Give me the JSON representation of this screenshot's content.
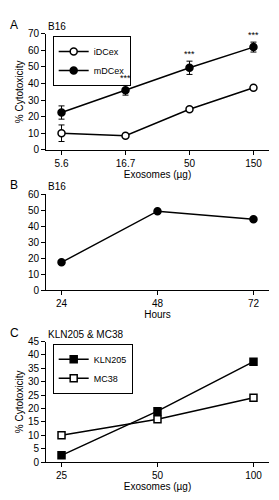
{
  "chart_data": [
    {
      "type": "line",
      "title": "B16",
      "x_label": "Exosomes (µg)",
      "y_label": "% Cytotoxicity",
      "categories": [
        "5.6",
        "16.7",
        "50",
        "150"
      ],
      "series": [
        {
          "name": "iDCex",
          "color": "#000000",
          "marker": "circle-open",
          "values": [
            10,
            8.5,
            24.5,
            37.5
          ],
          "errors": [
            5,
            1,
            1,
            1
          ]
        },
        {
          "name": "mDCex",
          "color": "#000000",
          "marker": "circle",
          "values": [
            22.5,
            36,
            49.5,
            62
          ],
          "errors": [
            4,
            3,
            4,
            3
          ]
        }
      ],
      "ylim": [
        0,
        70
      ],
      "yticks": [
        0,
        10,
        20,
        30,
        40,
        50,
        60,
        70
      ],
      "grid": false,
      "legend": "upper left",
      "annotations": [
        {
          "text": "A"
        },
        {
          "text": "***",
          "x": "16.7",
          "series": "mDCex"
        },
        {
          "text": "***",
          "x": "50",
          "series": "mDCex"
        },
        {
          "text": "***",
          "x": "150",
          "series": "mDCex"
        }
      ]
    },
    {
      "type": "line",
      "title": "B16",
      "x_label": "Hours",
      "categories": [
        "24",
        "48",
        "72"
      ],
      "series": [
        {
          "color": "#000000",
          "marker": "circle",
          "values": [
            17.5,
            49.5,
            44.5
          ]
        }
      ],
      "ylim": [
        0,
        60
      ],
      "yticks": [
        0,
        10,
        20,
        30,
        40,
        50,
        60
      ],
      "grid": false,
      "annotations": [
        {
          "text": "B"
        }
      ]
    },
    {
      "type": "line",
      "title": "KLN205 & MC38",
      "x_label": "Exosomes (µg)",
      "y_label": "% Cytotoxicity",
      "categories": [
        "25",
        "50",
        "100"
      ],
      "series": [
        {
          "name": "KLN205",
          "color": "#000000",
          "marker": "square",
          "values": [
            2.5,
            19,
            37.5
          ]
        },
        {
          "name": "MC38",
          "color": "#000000",
          "marker": "square-open",
          "values": [
            10,
            16,
            24
          ]
        }
      ],
      "ylim": [
        0,
        45
      ],
      "yticks": [
        0,
        5,
        10,
        15,
        20,
        25,
        30,
        35,
        40,
        45
      ],
      "grid": false,
      "legend": "upper left",
      "annotations": [
        {
          "text": "C"
        }
      ]
    }
  ]
}
